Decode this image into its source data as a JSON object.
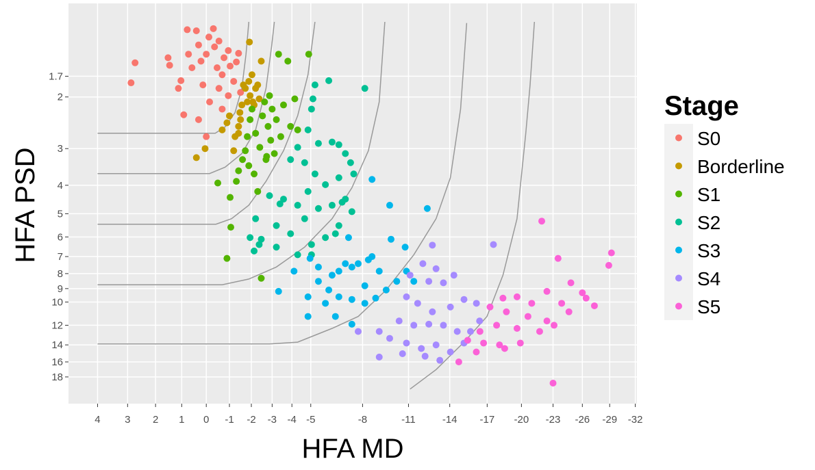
{
  "chart_data": {
    "type": "scatter",
    "x_title": "HFA MD",
    "y_title": "HFA PSD",
    "legend_title": "Stage",
    "x_reversed": true,
    "y_log": true,
    "y_reversed": true,
    "grid": true,
    "legend_position": "right",
    "xlim": [
      4.9,
      -32.2
    ],
    "ylim": [
      0.96,
      22.2
    ],
    "xticks": [
      4,
      3,
      2,
      1,
      0,
      -1,
      -2,
      -3,
      -4,
      -5,
      -8,
      -11,
      -14,
      -17,
      -20,
      -23,
      -26,
      -29,
      -32
    ],
    "yticks": [
      1.7,
      2,
      3,
      4,
      5,
      6,
      7,
      8,
      9,
      10,
      12,
      14,
      16,
      18
    ],
    "series": [
      {
        "name": "S0",
        "color": "#F8766D",
        "x": [
          2.74,
          2.88,
          1.53,
          1.47,
          1.13,
          1.03,
          0.92,
          0.78,
          0.59,
          0.41,
          0.32,
          0.22,
          0.14,
          0,
          -0.11,
          -0.3,
          -0.35,
          -0.46,
          -0.54,
          -0.68,
          -0.76,
          -0.95,
          -1.03,
          -1.19,
          -1.31,
          -1.41,
          -1.5,
          0.32,
          0.73,
          -0.14,
          -0.54,
          -0.95,
          0,
          -0.68
        ],
        "y": [
          1.53,
          1.79,
          1.47,
          1.56,
          1.87,
          1.76,
          2.3,
          1.18,
          1.59,
          1.19,
          1.33,
          1.51,
          1.82,
          1.43,
          1.25,
          1.17,
          1.35,
          1.59,
          1.87,
          1.68,
          1.47,
          1.39,
          1.57,
          1.77,
          1.52,
          1.42,
          1.93,
          2.39,
          1.43,
          2.08,
          1.29,
          1.98,
          2.73,
          2.2
        ]
      },
      {
        "name": "Borderline",
        "color": "#C49A00",
        "x": [
          0.41,
          0.05,
          -0.68,
          -0.89,
          -1,
          -1.25,
          -1.41,
          -1.41,
          -1.47,
          -1.56,
          -1.63,
          -1.72,
          -1.81,
          -1.88,
          -1.94,
          -2.03,
          -2.07,
          -2.2,
          -2.3,
          -2.37,
          -2.47,
          -1.91,
          -1.5,
          -1.19,
          -2.13
        ],
        "y": [
          3.22,
          3,
          2.59,
          2.45,
          2.32,
          2.73,
          2.66,
          2.52,
          2.26,
          2.13,
          1.82,
          1.87,
          2.08,
          1.77,
          1.98,
          1.68,
          2.08,
          1.87,
          1.82,
          2.03,
          1.51,
          1.3,
          2.39,
          3.05,
          2.13
        ]
      },
      {
        "name": "S1",
        "color": "#53B400",
        "x": [
          -0.49,
          -0.89,
          -1.03,
          -1.06,
          -1.31,
          -1.41,
          -1.59,
          -1.72,
          -1.81,
          -1.94,
          -2.03,
          -2.13,
          -2.2,
          -2.3,
          -2.4,
          -2.53,
          -2.63,
          -2.73,
          -2.8,
          -2.87,
          -2.93,
          -3,
          -3.11,
          -3.21,
          -3.32,
          -3.43,
          -3.57,
          -3.79,
          -3.93,
          -4.15,
          -4.3,
          -4.89,
          -2.47,
          -2.7,
          -1.88
        ],
        "y": [
          3.93,
          7.1,
          4.4,
          5.56,
          3.88,
          3.57,
          3.27,
          3.05,
          2.73,
          2.39,
          2.2,
          3.66,
          2.66,
          4.2,
          2.97,
          2.32,
          2.08,
          3.19,
          2.52,
          1.98,
          2.81,
          2.2,
          3.12,
          2.39,
          1.43,
          2.73,
          2.13,
          1.51,
          2.52,
          2.03,
          2.59,
          1.43,
          8.3,
          3.27,
          3.43
        ]
      },
      {
        "name": "S2",
        "color": "#00C094",
        "x": [
          -5.23,
          -6,
          -8.14,
          -5.12,
          -5.04,
          -4.85,
          -4.3,
          -3.93,
          -4.67,
          -5.42,
          -6.19,
          -6.58,
          -6.96,
          -7.27,
          -6.58,
          -5.81,
          -5.23,
          -4.85,
          -4.3,
          -3.57,
          -2.87,
          -2.2,
          -1.94,
          -2.37,
          -3.21,
          -3.93,
          -4.67,
          -5.42,
          -6.19,
          -6.96,
          -7.35,
          -6.58,
          -5.81,
          -5.04,
          -4.3,
          -3.21,
          -2.47,
          -2.13,
          -5.04,
          -6.38,
          -3.39,
          -6.77,
          -7.46
        ],
        "y": [
          1.82,
          1.76,
          1.87,
          2.03,
          2.2,
          2.59,
          2.97,
          3.27,
          3.35,
          2.88,
          2.85,
          2.91,
          3.12,
          3.35,
          3.77,
          3.98,
          3.66,
          4.2,
          4.68,
          4.46,
          4.34,
          5.2,
          6.03,
          6.37,
          5.49,
          5.85,
          5.2,
          4.8,
          4.68,
          4.46,
          4.92,
          5.49,
          6.03,
          6.37,
          6.9,
          6.5,
          6.11,
          6.7,
          6.9,
          5.85,
          4.63,
          4.57,
          3.66
        ]
      },
      {
        "name": "S3",
        "color": "#00B6EB",
        "x": [
          -8.59,
          -9.73,
          -12.33,
          -9.82,
          -10.77,
          -8.59,
          -8.36,
          -7.73,
          -7.35,
          -6.96,
          -6.58,
          -6.19,
          -5.42,
          -4.96,
          -4.11,
          -3.32,
          -4.85,
          -5.42,
          -6,
          -6.58,
          -7.35,
          -8.14,
          -8.82,
          -9.5,
          -10.2,
          -10.86,
          -11.37,
          -6.38,
          -7.35,
          -4.85,
          -7.15,
          -9.05,
          -8.14,
          -5.81
        ],
        "y": [
          3.82,
          4.68,
          4.8,
          6.11,
          6.5,
          7,
          7.18,
          7.4,
          7.6,
          7.4,
          7.85,
          8.1,
          7.6,
          7.1,
          7.85,
          9.2,
          9.6,
          8.5,
          9.1,
          9.6,
          9.8,
          10.1,
          9.7,
          9.1,
          8.5,
          7.85,
          8.5,
          11.2,
          11.9,
          11.2,
          6.03,
          7.85,
          8.8,
          10.1
        ]
      },
      {
        "name": "S4",
        "color": "#A58AFF",
        "x": [
          -12.7,
          -17.53,
          -12.01,
          -12.97,
          -11.11,
          -12.44,
          -13.52,
          -14.32,
          -10.86,
          -11.64,
          -12.7,
          -14.05,
          -15.11,
          -16.11,
          -10.36,
          -11.37,
          -12.44,
          -13.52,
          -14.58,
          -15.63,
          -9.05,
          -9.73,
          -10.86,
          -11.9,
          -12.97,
          -14.05,
          -15.11,
          -9.05,
          -10.59,
          -12.17,
          -13.25,
          -7.73,
          -16.37
        ],
        "y": [
          6.4,
          6.37,
          7.4,
          7.7,
          8.1,
          8.5,
          8.6,
          8.1,
          9.6,
          10.1,
          10.8,
          10.4,
          9.8,
          10.1,
          11.6,
          12,
          11.9,
          12,
          12.6,
          12.6,
          12.6,
          13.3,
          13.8,
          14.4,
          14,
          14.8,
          13.8,
          15.4,
          15,
          15.3,
          15.8,
          12.6,
          11.6
        ]
      },
      {
        "name": "S5",
        "color": "#FB61D7",
        "x": [
          -21.9,
          -23.5,
          -29.2,
          -28.9,
          -24.8,
          -22.4,
          -19.6,
          -18.35,
          -20.95,
          -23.86,
          -26.4,
          -27.3,
          -17.24,
          -18.65,
          -20.6,
          -22.4,
          -24.6,
          -16.4,
          -17.8,
          -19.6,
          -21.7,
          -16.7,
          -18.05,
          -19.9,
          -23.1,
          -15.4,
          -14.7,
          -18.5,
          -23,
          -16.1,
          -26
        ],
        "y": [
          5.3,
          7.1,
          6.8,
          7.5,
          8.6,
          9.2,
          9.6,
          9.7,
          10.1,
          10.1,
          9.7,
          10.3,
          10.4,
          10.8,
          11.2,
          11.6,
          10.8,
          12.6,
          12,
          12.3,
          12.6,
          13.8,
          14,
          13.8,
          12,
          13.5,
          16,
          14.4,
          18.9,
          14.8,
          9.3
        ]
      }
    ],
    "boundaries": {
      "color": "#999999",
      "lines": [
        {
          "x": [
            4,
            -0.38,
            -0.81,
            -1.25,
            -1.56,
            -1.75,
            -1.88
          ],
          "y": [
            2.66,
            2.66,
            2.53,
            2.26,
            1.87,
            1.43,
            1.11
          ]
        },
        {
          "x": [
            4,
            -0.14,
            -0.81,
            -1.56,
            -2.2,
            -2.7,
            -2.97,
            -3.11
          ],
          "y": [
            3.65,
            3.65,
            3.47,
            3.12,
            2.59,
            1.87,
            1.35,
            1.11
          ]
        },
        {
          "x": [
            4,
            -0.41,
            -1.09,
            -1.88,
            -2.7,
            -3.57,
            -4.3,
            -4.85,
            -5.23
          ],
          "y": [
            5.43,
            5.43,
            5.2,
            4.68,
            3.88,
            3.05,
            2.32,
            1.68,
            1.11
          ]
        },
        {
          "x": [
            4,
            -0.68,
            -1.88,
            -3.21,
            -4.67,
            -6.19,
            -7.35,
            -8.36,
            -9.05,
            -9.41
          ],
          "y": [
            8.73,
            8.73,
            8.35,
            7.6,
            6.5,
            5.2,
            4.08,
            3.05,
            2.08,
            1.11
          ]
        },
        {
          "x": [
            4,
            -2.87,
            -4.3,
            -6.19,
            -7.73,
            -9.5,
            -11.37,
            -12.97,
            -14.05,
            -14.84,
            -15.32
          ],
          "y": [
            13.9,
            13.9,
            13.7,
            12.3,
            11.2,
            9.1,
            6.9,
            5.2,
            3.77,
            2.2,
            1.12
          ]
        },
        {
          "x": [
            -11.11,
            -12.97,
            -15.11,
            -16.98,
            -18.35,
            -19.6,
            -20.4,
            -20.8,
            -21.2
          ],
          "y": [
            19.8,
            17,
            13.7,
            11.2,
            8.1,
            5.2,
            2.66,
            1.82,
            1.11
          ]
        }
      ]
    }
  }
}
